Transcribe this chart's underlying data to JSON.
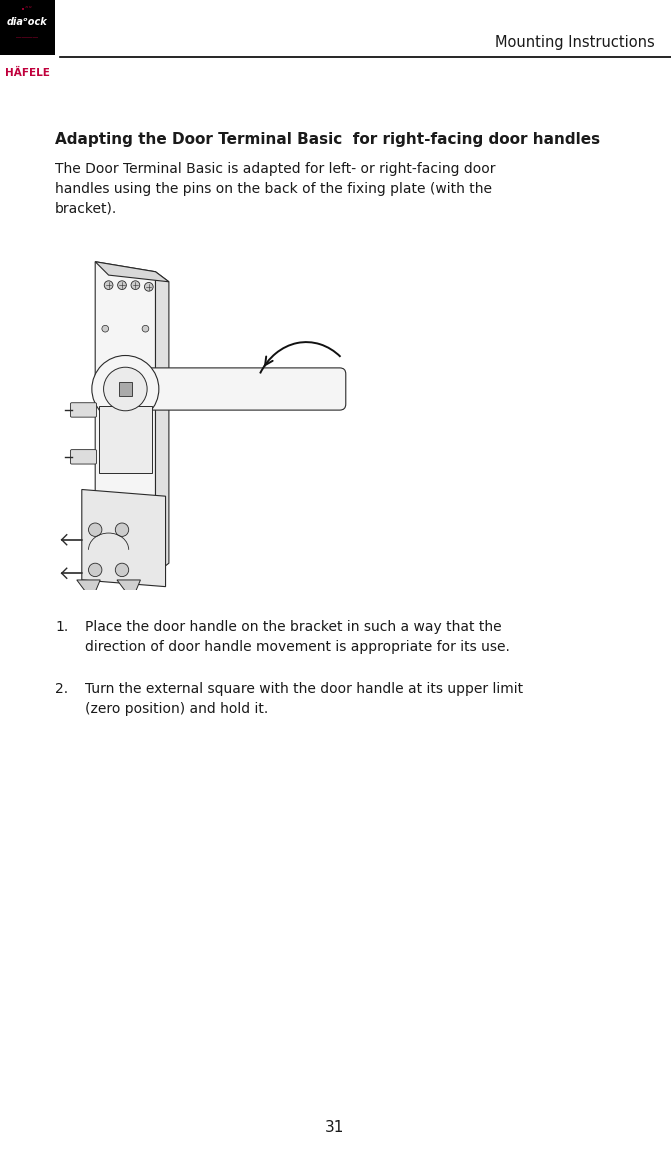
{
  "bg_color": "#ffffff",
  "header_line_color": "#000000",
  "header_text": "Mounting Instructions",
  "header_text_color": "#1a1a1a",
  "header_fontsize": 10.5,
  "logo_box_color": "#000000",
  "logo_sub_color": "#c0003c",
  "title_text": "Adapting the Door Terminal Basic  for right-facing door handles",
  "title_fontsize": 11,
  "body_text": "The Door Terminal Basic is adapted for left- or right-facing door\nhandles using the pins on the back of the fixing plate (with the\nbracket).",
  "body_fontsize": 10,
  "step1_num": "1.",
  "step1_text": "Place the door handle on the bracket in such a way that the\ndirection of door handle movement is appropriate for its use.",
  "step2_num": "2.",
  "step2_text": "Turn the external square with the door handle at its upper limit\n(zero position) and hold it.",
  "step_fontsize": 10,
  "page_number": "31",
  "page_fontsize": 11
}
